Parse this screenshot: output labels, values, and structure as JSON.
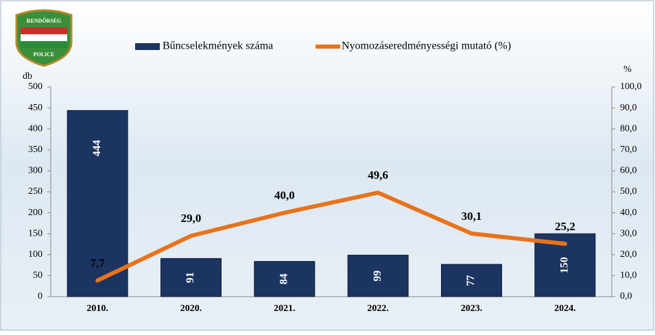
{
  "logo": {
    "top": "RENDŐRSÉG",
    "bottom": "POLICE"
  },
  "chart_data": {
    "type": "bar-line",
    "categories": [
      "2010.",
      "2020.",
      "2021.",
      "2022.",
      "2023.",
      "2024."
    ],
    "y_label": "db",
    "y2_label": "%",
    "series": [
      {
        "name": "Bűncselekmények száma",
        "color": "#1c3461",
        "values": [
          444,
          91,
          84,
          99,
          77,
          150
        ]
      },
      {
        "name": "Nyomozáseredményességi mutató (%)",
        "color": "#e8731c",
        "axis": "y2",
        "values": [
          7.7,
          29.0,
          40.0,
          49.6,
          30.1,
          25.2
        ],
        "value_labels": [
          "7,7",
          "29,0",
          "40,0",
          "49,6",
          "30,1",
          "25,2"
        ]
      }
    ],
    "ylim": [
      0,
      500
    ],
    "yticks": [
      0,
      50,
      100,
      150,
      200,
      250,
      300,
      350,
      400,
      450,
      500
    ],
    "y2lim": [
      0,
      100
    ],
    "y2ticks": [
      {
        "value": 0,
        "label": "0,0"
      },
      {
        "value": 10,
        "label": "10,0"
      },
      {
        "value": 20,
        "label": "20,0"
      },
      {
        "value": 30,
        "label": "30,0"
      },
      {
        "value": 40,
        "label": "40,0"
      },
      {
        "value": 50,
        "label": "50,0"
      },
      {
        "value": 60,
        "label": "60,0"
      },
      {
        "value": 70,
        "label": "70,0"
      },
      {
        "value": 80,
        "label": "80,0"
      },
      {
        "value": 90,
        "label": "90,0"
      },
      {
        "value": 100,
        "label": "100,0"
      }
    ]
  }
}
